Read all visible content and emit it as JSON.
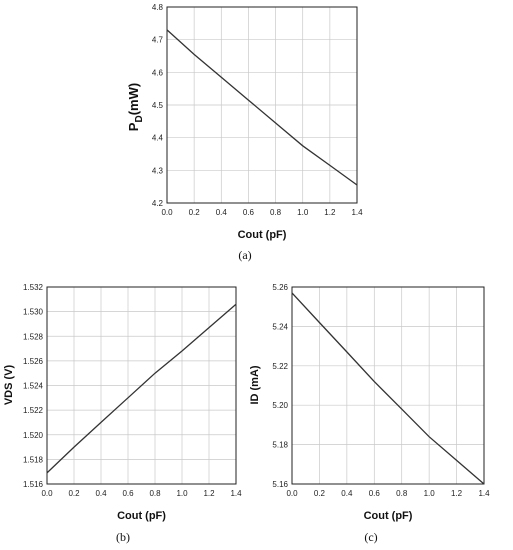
{
  "chart_data": [
    {
      "id": "a",
      "type": "line",
      "caption": "(a)",
      "xlabel": "Cout (pF)",
      "ylabel_main": "P",
      "ylabel_sub": "D",
      "ylabel_rest": "(mW)",
      "xlim": [
        0.0,
        1.4
      ],
      "ylim": [
        4.2,
        4.8
      ],
      "xticks": [
        "0.0",
        "0.2",
        "0.4",
        "0.6",
        "0.8",
        "1.0",
        "1.2",
        "1.4"
      ],
      "yticks": [
        "4.2",
        "4.3",
        "4.4",
        "4.5",
        "4.6",
        "4.7",
        "4.8"
      ],
      "x": [
        0.0,
        0.2,
        0.4,
        0.6,
        0.8,
        1.0,
        1.2,
        1.4
      ],
      "y": [
        4.73,
        4.655,
        4.585,
        4.515,
        4.445,
        4.375,
        4.315,
        4.255
      ]
    },
    {
      "id": "b",
      "type": "line",
      "caption": "(b)",
      "xlabel": "Cout (pF)",
      "ylabel": "VDS (V)",
      "xlim": [
        0.0,
        1.4
      ],
      "ylim": [
        1.516,
        1.532
      ],
      "xticks": [
        "0.0",
        "0.2",
        "0.4",
        "0.6",
        "0.8",
        "1.0",
        "1.2",
        "1.4"
      ],
      "yticks": [
        "1.516",
        "1.518",
        "1.520",
        "1.522",
        "1.524",
        "1.526",
        "1.528",
        "1.530",
        "1.532"
      ],
      "x": [
        0.0,
        0.2,
        0.4,
        0.6,
        0.8,
        1.0,
        1.2,
        1.4
      ],
      "y": [
        1.5169,
        1.519,
        1.521,
        1.523,
        1.525,
        1.5268,
        1.5287,
        1.5306
      ]
    },
    {
      "id": "c",
      "type": "line",
      "caption": "(c)",
      "xlabel": "Cout (pF)",
      "ylabel": "ID (mA)",
      "xlim": [
        0.0,
        1.4
      ],
      "ylim": [
        5.16,
        5.26
      ],
      "xticks": [
        "0.0",
        "0.2",
        "0.4",
        "0.6",
        "0.8",
        "1.0",
        "1.2",
        "1.4"
      ],
      "yticks": [
        "5.16",
        "5.18",
        "5.20",
        "5.22",
        "5.24",
        "5.26"
      ],
      "x": [
        0.0,
        0.2,
        0.4,
        0.6,
        0.8,
        1.0,
        1.2,
        1.4
      ],
      "y": [
        5.257,
        5.242,
        5.227,
        5.212,
        5.198,
        5.184,
        5.172,
        5.16
      ]
    }
  ]
}
